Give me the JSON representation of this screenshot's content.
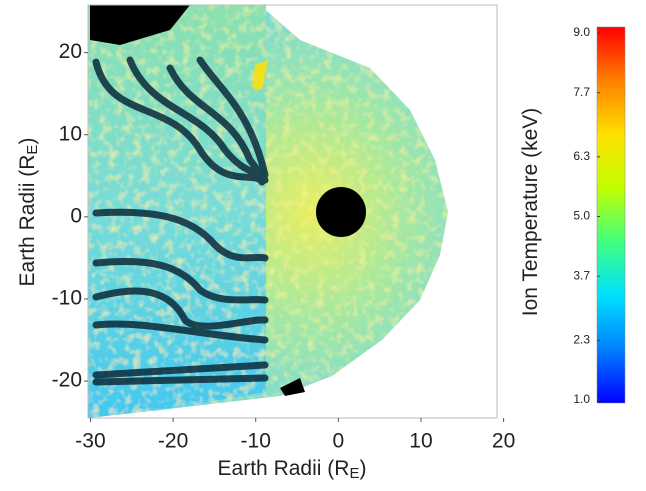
{
  "chart_data": {
    "type": "image",
    "x_label": {
      "text": "Earth Radii (R",
      "subscript": "E",
      "close": ")"
    },
    "y_label": {
      "text": "Earth Radii (R",
      "subscript": "E",
      "close": ")"
    },
    "xlim": [
      -30.3,
      19.2
    ],
    "xticks": [
      -30,
      -20,
      -10,
      0,
      10,
      20
    ],
    "ylim": [
      -24.5,
      25.8
    ],
    "yticks": [
      -20,
      -10,
      0,
      10,
      20
    ],
    "colorbar": {
      "label": "Ion Temperature (keV)",
      "colormap": "jet",
      "clim": [
        1.0,
        9.0
      ],
      "ticks": [
        {
          "value": 1.0,
          "label": "1.0"
        },
        {
          "value": 2.3,
          "label": "2.3"
        },
        {
          "value": 3.7,
          "label": "3.7"
        },
        {
          "value": 5.0,
          "label": "5.0"
        },
        {
          "value": 6.3,
          "label": "6.3"
        },
        {
          "value": 7.7,
          "label": "7.7"
        },
        {
          "value": 9.0,
          "label": "9.0"
        }
      ]
    }
  }
}
